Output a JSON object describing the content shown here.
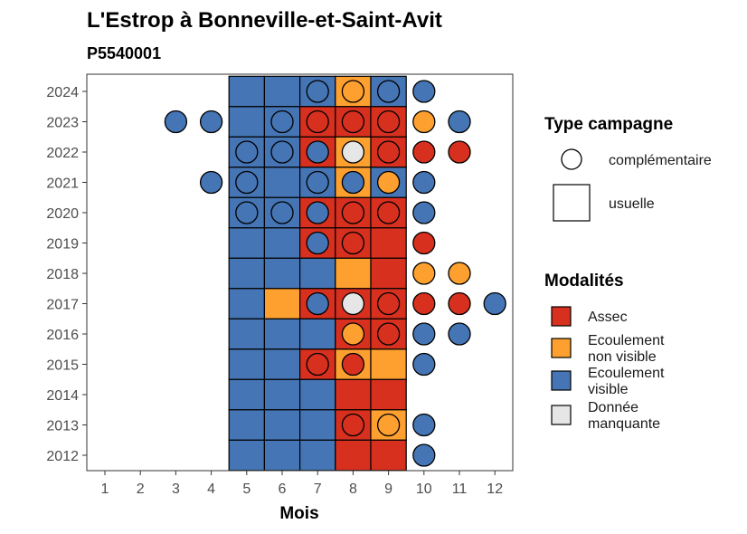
{
  "chart_data": {
    "type": "heatmap",
    "title": "L'Estrop à Bonneville-et-Saint-Avit",
    "subtitle": "P5540001",
    "xlabel": "Mois",
    "ylabel": "",
    "x_ticks": [
      "1",
      "2",
      "3",
      "4",
      "5",
      "6",
      "7",
      "8",
      "9",
      "10",
      "11",
      "12"
    ],
    "y_ticks": [
      "2012",
      "2013",
      "2014",
      "2015",
      "2016",
      "2017",
      "2018",
      "2019",
      "2020",
      "2021",
      "2022",
      "2023",
      "2024"
    ],
    "xlim": [
      0.5,
      12.5
    ],
    "ylim": [
      2011.5,
      2024.5
    ],
    "grid": false,
    "legend_placement": "right",
    "colors": {
      "assec": "#D7301F",
      "non_visible": "#FEA02F",
      "visible": "#4575B4",
      "manquante": "#E6E6E6"
    },
    "legend_shape": {
      "title": "Type campagne",
      "items": [
        {
          "key": "complementaire",
          "label": "complémentaire",
          "shape": "circle"
        },
        {
          "key": "usuelle",
          "label": "usuelle",
          "shape": "square"
        }
      ]
    },
    "legend_modalites": {
      "title": "Modalités",
      "items": [
        {
          "key": "assec",
          "label": [
            "Assec"
          ]
        },
        {
          "key": "non_visible",
          "label": [
            "Ecoulement",
            "non visible"
          ]
        },
        {
          "key": "visible",
          "label": [
            "Ecoulement",
            "visible"
          ]
        },
        {
          "key": "manquante",
          "label": [
            "Donnée",
            "manquante"
          ]
        }
      ]
    },
    "usuelle": [
      {
        "year": 2024,
        "months": {
          "5": "visible",
          "6": "visible",
          "7": "visible",
          "8": "non_visible",
          "9": "visible"
        }
      },
      {
        "year": 2023,
        "months": {
          "5": "visible",
          "6": "visible",
          "7": "assec",
          "8": "assec",
          "9": "assec"
        }
      },
      {
        "year": 2022,
        "months": {
          "5": "visible",
          "6": "visible",
          "7": "assec",
          "8": "non_visible",
          "9": "assec"
        }
      },
      {
        "year": 2021,
        "months": {
          "5": "visible",
          "6": "visible",
          "7": "visible",
          "8": "non_visible",
          "9": "visible"
        }
      },
      {
        "year": 2020,
        "months": {
          "5": "visible",
          "6": "visible",
          "7": "assec",
          "8": "assec",
          "9": "assec"
        }
      },
      {
        "year": 2019,
        "months": {
          "5": "visible",
          "6": "visible",
          "7": "assec",
          "8": "assec",
          "9": "assec"
        }
      },
      {
        "year": 2018,
        "months": {
          "5": "visible",
          "6": "visible",
          "7": "visible",
          "8": "non_visible",
          "9": "assec"
        }
      },
      {
        "year": 2017,
        "months": {
          "5": "visible",
          "6": "non_visible",
          "7": "assec",
          "8": "assec",
          "9": "assec"
        }
      },
      {
        "year": 2016,
        "months": {
          "5": "visible",
          "6": "visible",
          "7": "visible",
          "8": "assec",
          "9": "assec"
        }
      },
      {
        "year": 2015,
        "months": {
          "5": "visible",
          "6": "visible",
          "7": "assec",
          "8": "non_visible",
          "9": "non_visible"
        }
      },
      {
        "year": 2014,
        "months": {
          "5": "visible",
          "6": "visible",
          "7": "visible",
          "8": "assec",
          "9": "assec"
        }
      },
      {
        "year": 2013,
        "months": {
          "5": "visible",
          "6": "visible",
          "7": "visible",
          "8": "assec",
          "9": "non_visible"
        }
      },
      {
        "year": 2012,
        "months": {
          "5": "visible",
          "6": "visible",
          "7": "visible",
          "8": "assec",
          "9": "assec"
        }
      }
    ],
    "complementaire": [
      {
        "year": 2024,
        "month": 7,
        "value": "visible"
      },
      {
        "year": 2024,
        "month": 8,
        "value": "non_visible"
      },
      {
        "year": 2024,
        "month": 9,
        "value": "visible"
      },
      {
        "year": 2024,
        "month": 10,
        "value": "visible"
      },
      {
        "year": 2023,
        "month": 3,
        "value": "visible"
      },
      {
        "year": 2023,
        "month": 4,
        "value": "visible"
      },
      {
        "year": 2023,
        "month": 6,
        "value": "visible"
      },
      {
        "year": 2023,
        "month": 7,
        "value": "assec"
      },
      {
        "year": 2023,
        "month": 8,
        "value": "assec"
      },
      {
        "year": 2023,
        "month": 9,
        "value": "assec"
      },
      {
        "year": 2023,
        "month": 10,
        "value": "non_visible"
      },
      {
        "year": 2023,
        "month": 11,
        "value": "visible"
      },
      {
        "year": 2022,
        "month": 5,
        "value": "visible"
      },
      {
        "year": 2022,
        "month": 6,
        "value": "visible"
      },
      {
        "year": 2022,
        "month": 7,
        "value": "visible"
      },
      {
        "year": 2022,
        "month": 8,
        "value": "manquante"
      },
      {
        "year": 2022,
        "month": 9,
        "value": "assec"
      },
      {
        "year": 2022,
        "month": 10,
        "value": "assec"
      },
      {
        "year": 2022,
        "month": 11,
        "value": "assec"
      },
      {
        "year": 2021,
        "month": 4,
        "value": "visible"
      },
      {
        "year": 2021,
        "month": 5,
        "value": "visible"
      },
      {
        "year": 2021,
        "month": 7,
        "value": "visible"
      },
      {
        "year": 2021,
        "month": 8,
        "value": "visible"
      },
      {
        "year": 2021,
        "month": 9,
        "value": "non_visible"
      },
      {
        "year": 2021,
        "month": 10,
        "value": "visible"
      },
      {
        "year": 2020,
        "month": 5,
        "value": "visible"
      },
      {
        "year": 2020,
        "month": 6,
        "value": "visible"
      },
      {
        "year": 2020,
        "month": 7,
        "value": "visible"
      },
      {
        "year": 2020,
        "month": 8,
        "value": "assec"
      },
      {
        "year": 2020,
        "month": 9,
        "value": "assec"
      },
      {
        "year": 2020,
        "month": 10,
        "value": "visible"
      },
      {
        "year": 2019,
        "month": 7,
        "value": "visible"
      },
      {
        "year": 2019,
        "month": 8,
        "value": "assec"
      },
      {
        "year": 2019,
        "month": 10,
        "value": "assec"
      },
      {
        "year": 2018,
        "month": 10,
        "value": "non_visible"
      },
      {
        "year": 2018,
        "month": 11,
        "value": "non_visible"
      },
      {
        "year": 2017,
        "month": 7,
        "value": "visible"
      },
      {
        "year": 2017,
        "month": 8,
        "value": "manquante"
      },
      {
        "year": 2017,
        "month": 9,
        "value": "assec"
      },
      {
        "year": 2017,
        "month": 10,
        "value": "assec"
      },
      {
        "year": 2017,
        "month": 11,
        "value": "assec"
      },
      {
        "year": 2017,
        "month": 12,
        "value": "visible"
      },
      {
        "year": 2016,
        "month": 8,
        "value": "non_visible"
      },
      {
        "year": 2016,
        "month": 9,
        "value": "assec"
      },
      {
        "year": 2016,
        "month": 10,
        "value": "visible"
      },
      {
        "year": 2016,
        "month": 11,
        "value": "visible"
      },
      {
        "year": 2015,
        "month": 7,
        "value": "assec"
      },
      {
        "year": 2015,
        "month": 8,
        "value": "assec"
      },
      {
        "year": 2015,
        "month": 10,
        "value": "visible"
      },
      {
        "year": 2013,
        "month": 8,
        "value": "assec"
      },
      {
        "year": 2013,
        "month": 9,
        "value": "non_visible"
      },
      {
        "year": 2013,
        "month": 10,
        "value": "visible"
      },
      {
        "year": 2012,
        "month": 10,
        "value": "visible"
      }
    ]
  }
}
